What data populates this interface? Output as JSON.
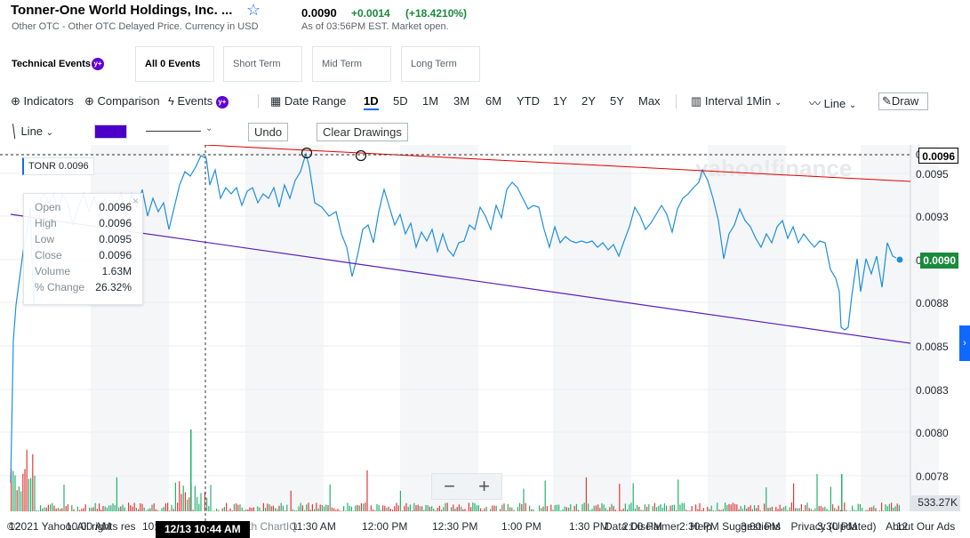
{
  "header": {
    "company": "Tonner-One World Holdings, Inc. ...",
    "exchange_line": "Other OTC - Other OTC Delayed Price. Currency in USD",
    "price": "0.0090",
    "change": "+0.0014",
    "change_pct": "(+18.4210%)",
    "as_of": "As of 03:56PM EST. Market open.",
    "colors": {
      "up": "#1a8a3c",
      "accent": "#0f69ff",
      "yahoo_purple": "#6001d2"
    }
  },
  "events": {
    "title": "Technical Events",
    "badge": "y+",
    "tabs": [
      "All 0 Events",
      "Short Term",
      "Mid Term",
      "Long Term"
    ],
    "selected": "All 0 Events"
  },
  "toolbar": {
    "indicators": "Indicators",
    "comparison": "Comparison",
    "events": "Events",
    "events_badge": "y+",
    "date_range": "Date Range",
    "ranges": [
      "1D",
      "5D",
      "1M",
      "3M",
      "6M",
      "YTD",
      "1Y",
      "2Y",
      "5Y",
      "Max"
    ],
    "active_range": "1D",
    "interval_label": "Interval",
    "interval_value": "1Min",
    "chart_type": "Line",
    "draw": "Draw"
  },
  "drawing": {
    "tool": "Line",
    "color": "#4a00c8",
    "undo": "Undo",
    "clear": "Clear Drawings"
  },
  "legend": {
    "symbol": "TONR",
    "symbol_price": "0.0096",
    "ohlc": [
      {
        "k": "Open",
        "v": "0.0096"
      },
      {
        "k": "High",
        "v": "0.0096"
      },
      {
        "k": "Low",
        "v": "0.0095"
      },
      {
        "k": "Close",
        "v": "0.0096"
      },
      {
        "k": "Volume",
        "v": "1.63M"
      },
      {
        "k": "% Change",
        "v": "26.32%"
      }
    ]
  },
  "chart_data": {
    "type": "line",
    "series": [
      {
        "name": "TONR",
        "color": "#1e8fde"
      }
    ],
    "y_ticks": [
      "0.0096",
      "0.0095",
      "0.0093",
      "0.0090",
      "0.0088",
      "0.0085",
      "0.0083",
      "0.0080",
      "0.0078"
    ],
    "ylim": [
      0.0076,
      0.0096
    ],
    "x_ticks": [
      "12",
      "10:00 AM",
      "10:",
      "11:30 AM",
      "12:00 PM",
      "12:30 PM",
      "1:00 PM",
      "1:30 PM",
      "2:00 PM",
      "2:30 PM",
      "3:00 PM",
      "3:30 PM",
      "12"
    ],
    "last_price_tag": "0.0090",
    "crosshair_price_tag": "0.0096",
    "volume_tag": "533.27K",
    "crosshair_time": "12/13 10:44 AM",
    "watermark": "yahoo!finance",
    "trendline_colors": {
      "red": "#e00000",
      "purple": "#5a1fb8"
    }
  },
  "zoom": {
    "minus": "−",
    "plus": "+"
  },
  "footer": {
    "copyright": "©2021 Yahoo. All rights res",
    "chartiq": "with ChartIQ",
    "links": [
      "Data Disclaimer",
      "Help",
      "Suggestions",
      "Privacy (Updated)",
      "About Our Ads"
    ]
  }
}
